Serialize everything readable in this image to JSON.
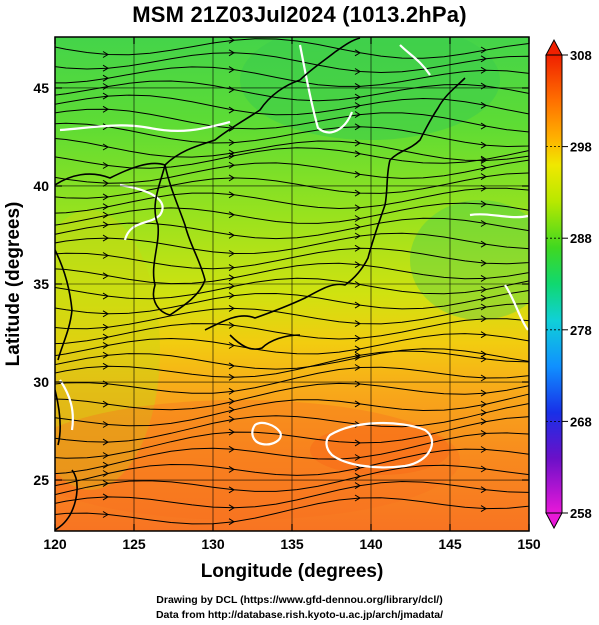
{
  "title": "MSM 21Z03Jul2024 (1013.2hPa)",
  "x_axis": {
    "label": "Longitude (degrees)",
    "range": [
      120,
      150
    ],
    "ticks": [
      120,
      125,
      130,
      135,
      140,
      145,
      150
    ]
  },
  "y_axis": {
    "label": "Latitude  (degrees)",
    "range": [
      22.4,
      47.6
    ],
    "ticks": [
      25,
      30,
      35,
      40,
      45
    ]
  },
  "colorbar": {
    "range": [
      258,
      308
    ],
    "ticks": [
      308,
      298,
      288,
      278,
      268,
      258
    ],
    "colors": [
      "#e818d8",
      "#6a10c8",
      "#1830e8",
      "#1090ff",
      "#10d0d8",
      "#10d870",
      "#40d820",
      "#b8e800",
      "#f0e800",
      "#ffb000",
      "#ff7000",
      "#f02000"
    ]
  },
  "credits": {
    "line1": "Drawing by DCL (https://www.gfd-dennou.org/library/dcl/)",
    "line2": "Data from http://database.rish.kyoto-u.ac.jp/arch/jmadata/"
  }
}
